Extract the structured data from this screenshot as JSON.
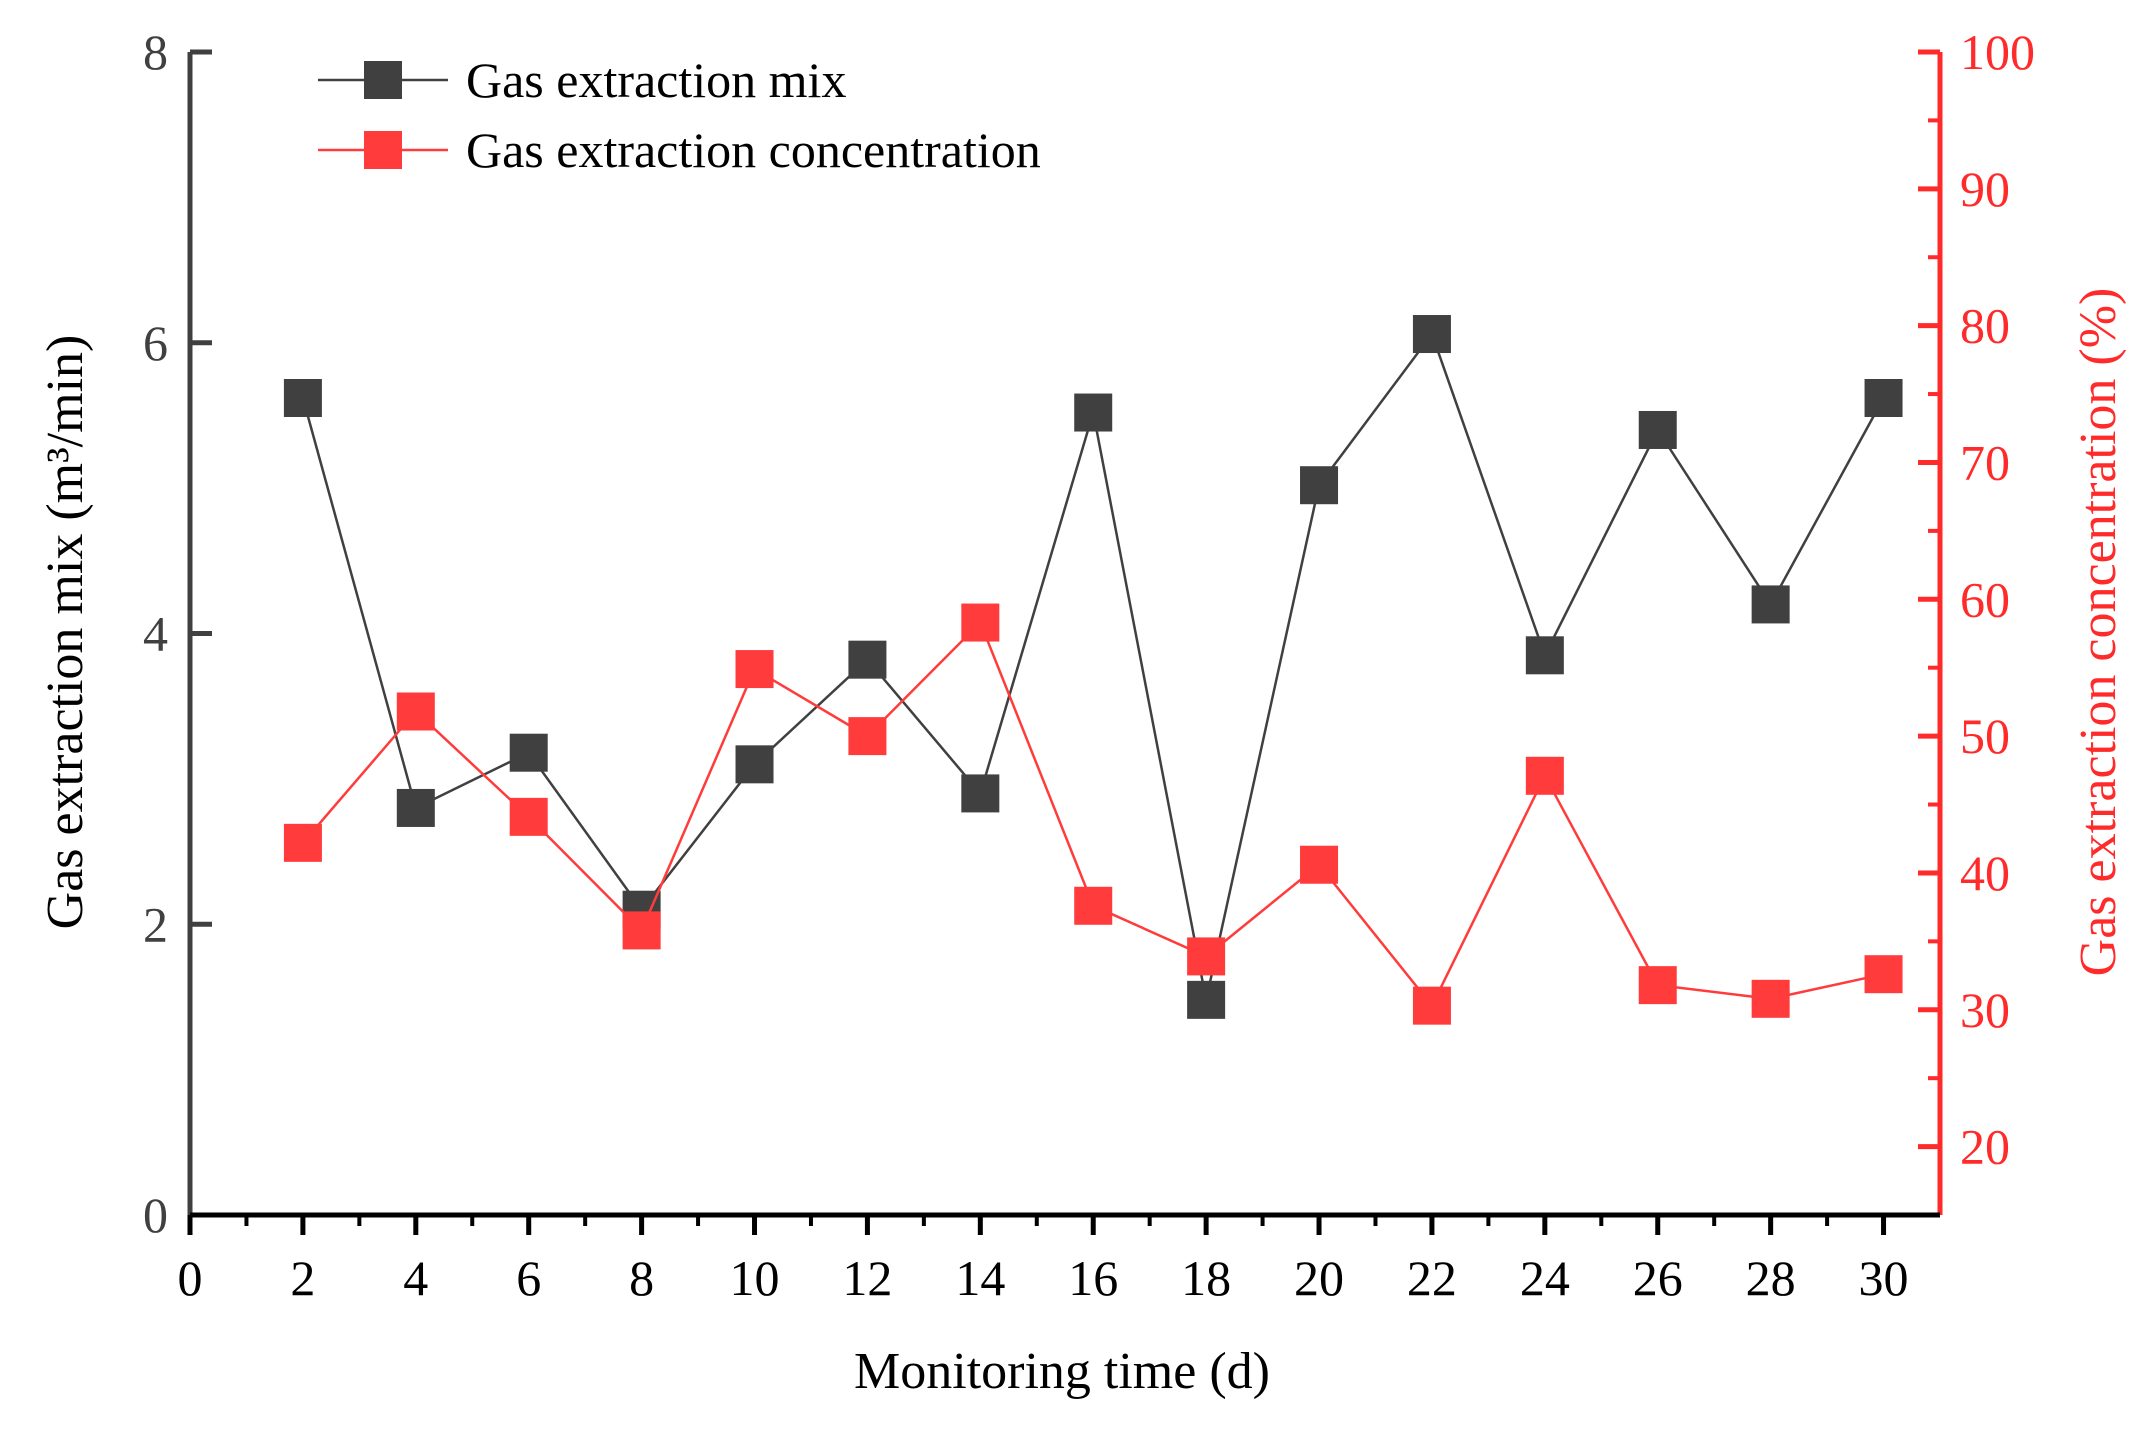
{
  "chart_data": {
    "type": "line",
    "xlabel": "Monitoring time (d)",
    "ylabel_left": "Gas extraction mix (m³/min)",
    "ylabel_right": "Gas extraction concentration (%)",
    "xlim": [
      0,
      31
    ],
    "xticks": [
      0,
      2,
      4,
      6,
      8,
      10,
      12,
      14,
      16,
      18,
      20,
      22,
      24,
      26,
      28,
      30
    ],
    "ylim_left": [
      0,
      8
    ],
    "yticks_left": [
      0,
      2,
      4,
      6,
      8
    ],
    "ylim_right": [
      15,
      100
    ],
    "yticks_right": [
      20,
      30,
      40,
      50,
      60,
      70,
      80,
      90,
      100
    ],
    "legend_position": "top-left",
    "series": [
      {
        "name": "Gas extraction mix",
        "axis": "left",
        "color": "#404040",
        "marker": "square",
        "x": [
          2,
          4,
          6,
          8,
          10,
          12,
          14,
          16,
          18,
          20,
          22,
          24,
          26,
          28,
          30
        ],
        "values": [
          5.62,
          2.8,
          3.18,
          2.1,
          3.1,
          3.82,
          2.9,
          5.52,
          1.48,
          5.02,
          6.06,
          3.85,
          5.4,
          4.2,
          5.62
        ]
      },
      {
        "name": "Gas extraction concentration",
        "axis": "right",
        "color": "#ff3b3b",
        "marker": "square",
        "x": [
          2,
          4,
          6,
          8,
          10,
          12,
          14,
          16,
          18,
          20,
          22,
          24,
          26,
          28,
          30
        ],
        "values": [
          42.2,
          51.8,
          44.1,
          35.8,
          54.9,
          50.0,
          58.3,
          37.6,
          33.9,
          40.6,
          30.3,
          47.1,
          31.8,
          30.8,
          32.6
        ]
      }
    ]
  }
}
